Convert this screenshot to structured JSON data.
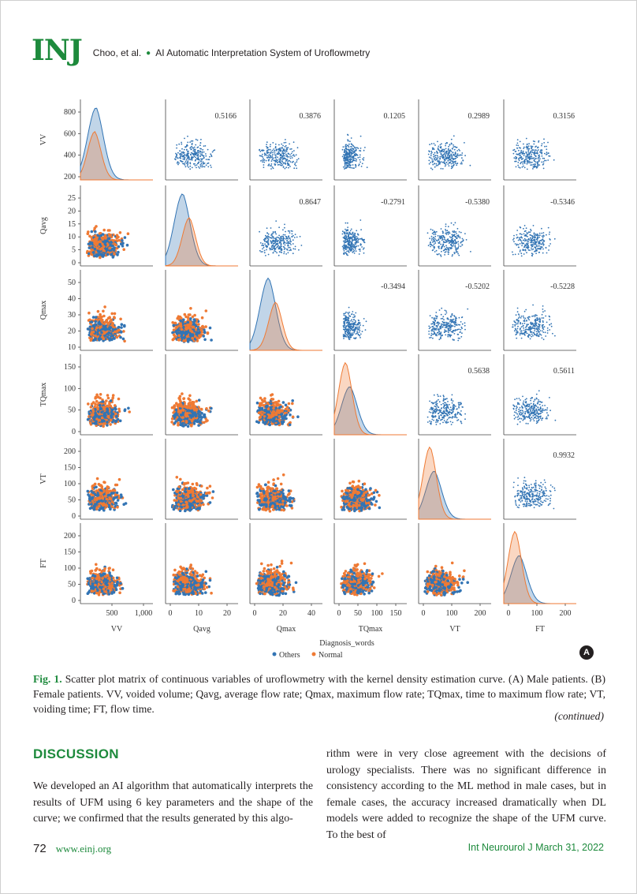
{
  "header": {
    "logo": "INJ",
    "authors": "Choo, et al.",
    "title": "AI Automatic Interpretation System of Uroflowmetry"
  },
  "colors": {
    "accent": "#1d8a3c",
    "others": "#3274b4",
    "normal": "#ef7a34"
  },
  "figure": {
    "panel_badge": "A",
    "legend_title": "Diagnosis_words",
    "legend_items": [
      "Others",
      "Normal"
    ]
  },
  "chart_data": {
    "type": "scatter",
    "variables": [
      "VV",
      "Qavg",
      "Qmax",
      "TQmax",
      "VT",
      "FT"
    ],
    "series": [
      {
        "name": "Others"
      },
      {
        "name": "Normal"
      }
    ],
    "correlations": [
      {
        "row": "VV",
        "col": "Qavg",
        "value": "0.5166"
      },
      {
        "row": "VV",
        "col": "Qmax",
        "value": "0.3876"
      },
      {
        "row": "VV",
        "col": "TQmax",
        "value": "0.1205"
      },
      {
        "row": "VV",
        "col": "VT",
        "value": "0.2989"
      },
      {
        "row": "VV",
        "col": "FT",
        "value": "0.3156"
      },
      {
        "row": "Qavg",
        "col": "Qmax",
        "value": "0.8647"
      },
      {
        "row": "Qavg",
        "col": "TQmax",
        "value": "-0.2791"
      },
      {
        "row": "Qavg",
        "col": "VT",
        "value": "-0.5380"
      },
      {
        "row": "Qavg",
        "col": "FT",
        "value": "-0.5346"
      },
      {
        "row": "Qmax",
        "col": "TQmax",
        "value": "-0.3494"
      },
      {
        "row": "Qmax",
        "col": "VT",
        "value": "-0.5202"
      },
      {
        "row": "Qmax",
        "col": "FT",
        "value": "-0.5228"
      },
      {
        "row": "TQmax",
        "col": "VT",
        "value": "0.5638"
      },
      {
        "row": "TQmax",
        "col": "FT",
        "value": "0.5611"
      },
      {
        "row": "VT",
        "col": "FT",
        "value": "0.9932"
      }
    ],
    "y_ticks": [
      [
        "200",
        "400",
        "600",
        "800"
      ],
      [
        "0",
        "5",
        "10",
        "15",
        "20",
        "25"
      ],
      [
        "10",
        "20",
        "30",
        "40",
        "50"
      ],
      [
        "0",
        "50",
        "100",
        "150"
      ],
      [
        "0",
        "50",
        "100",
        "150",
        "200"
      ],
      [
        "0",
        "50",
        "100",
        "150",
        "200"
      ]
    ],
    "x_ticks": [
      [
        "500",
        "1,000"
      ],
      [
        "0",
        "10",
        "20"
      ],
      [
        "0",
        "20",
        "40"
      ],
      [
        "0",
        "50",
        "100",
        "150"
      ],
      [
        "0",
        "100",
        "200"
      ],
      [
        "0",
        "100",
        "200"
      ]
    ]
  },
  "caption": {
    "label": "Fig. 1.",
    "text": " Scatter plot matrix of continuous variables of uroflowmetry with the kernel density estimation curve. (A) Male patients. (B) Female patients. VV, voided volume; Qavg, average flow rate; Qmax, maximum flow rate; TQmax, time to maximum flow rate; VT, voiding time; FT, flow time.",
    "continued": "(continued)"
  },
  "discussion": {
    "heading": "DISCUSSION",
    "left": "We developed an AI algorithm that automatically interprets the results of UFM using 6 key parameters and the shape of the curve; we confirmed that the results generated by this algo-",
    "right": "rithm were in very close agreement with the decisions of urology specialists. There was no significant difference in consistency according to the ML method in male cases, but in female cases, the accuracy increased dramatically when DL models were added to recognize the shape of the UFM curve. To the best of"
  },
  "footer": {
    "page": "72",
    "site": "www.einj.org",
    "journal": "Int Neurourol J  March 31, 2022"
  }
}
